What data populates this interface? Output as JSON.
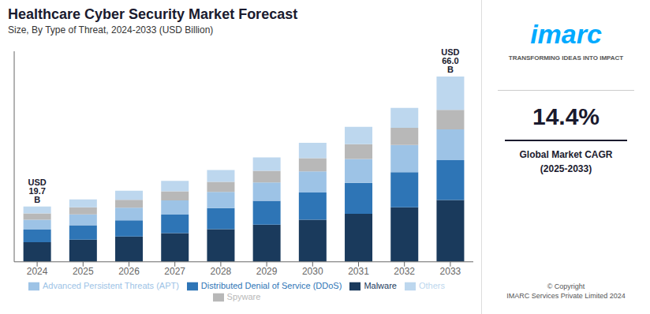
{
  "chart_data": {
    "type": "bar",
    "title": "Healthcare Cyber Security Market Forecast",
    "subtitle": "Size, By Type of Threat, 2024-2033 (USD Billion)",
    "categories": [
      "2024",
      "2025",
      "2026",
      "2027",
      "2028",
      "2029",
      "2030",
      "2031",
      "2032",
      "2033"
    ],
    "series": [
      {
        "name": "Malware",
        "color": "#1a3a5c",
        "values": [
          7.0,
          7.9,
          9.0,
          10.2,
          11.6,
          13.2,
          15.0,
          17.1,
          19.4,
          22.0
        ]
      },
      {
        "name": "Distributed Denial of Service (DDoS)",
        "color": "#2e75b6",
        "values": [
          4.5,
          5.1,
          5.8,
          6.6,
          7.5,
          8.5,
          9.7,
          11.0,
          12.5,
          14.2
        ]
      },
      {
        "name": "Advanced Persistent Threats (APT)",
        "color": "#9dc3e6",
        "values": [
          3.5,
          3.9,
          4.5,
          5.1,
          5.8,
          6.6,
          7.5,
          8.5,
          9.7,
          11.0
        ]
      },
      {
        "name": "Spyware",
        "color": "#b8b8b8",
        "values": [
          2.2,
          2.5,
          2.8,
          3.2,
          3.6,
          4.1,
          4.7,
          5.3,
          6.1,
          6.9
        ]
      },
      {
        "name": "Others",
        "color": "#bdd7ee",
        "values": [
          2.5,
          2.8,
          3.2,
          3.7,
          4.2,
          4.8,
          5.5,
          6.2,
          7.1,
          11.9
        ]
      }
    ],
    "stacked": true,
    "ylim": [
      0,
      75
    ],
    "tick_labels": "x",
    "grid": false,
    "annotations": [
      {
        "category": "2024",
        "text": "USD 19.7 B"
      },
      {
        "category": "2033",
        "text": "USD 66.0 B"
      }
    ],
    "panel": {
      "logo": "imarc",
      "tagline": "TRANSFORMING IDEAS INTO IMPACT",
      "cagr": "14.4%",
      "cagr_label": "Global Market CAGR\n(2025-2033)",
      "copyright": "© Copyright\nIMARC Services Private Limited 2024"
    }
  }
}
